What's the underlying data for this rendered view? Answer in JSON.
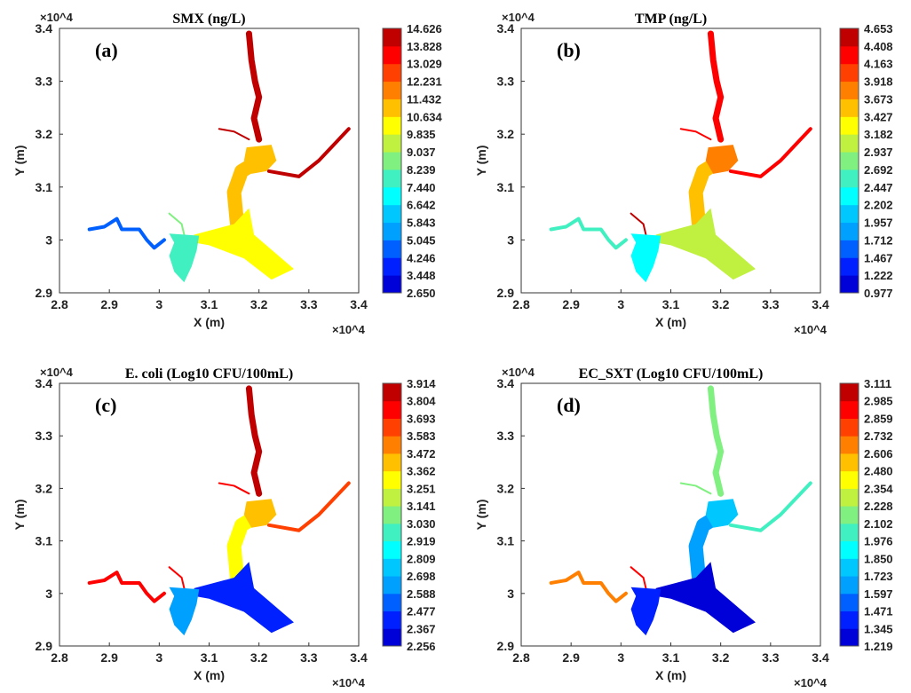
{
  "chart_data": [
    {
      "panel_label": "(a)",
      "title": "SMX (ng/L)",
      "type": "heatmap",
      "xlabel": "X (m)",
      "ylabel": "Y (m)",
      "x_scale_label": "×10^4",
      "y_scale_label": "×10^4",
      "xlim": [
        2.8,
        3.4
      ],
      "ylim": [
        2.9,
        3.4
      ],
      "xticks": [
        "2.8",
        "2.9",
        "3",
        "3.1",
        "3.2",
        "3.3",
        "3.4"
      ],
      "yticks": [
        "2.9",
        "3",
        "3.1",
        "3.2",
        "3.3",
        "3.4"
      ],
      "colorbar_ticks": [
        "2.650",
        "3.448",
        "4.246",
        "5.045",
        "5.843",
        "6.642",
        "7.440",
        "8.239",
        "9.037",
        "9.835",
        "10.634",
        "11.432",
        "12.231",
        "13.029",
        "13.828",
        "14.626"
      ],
      "regions": {
        "north_river": 14.2,
        "nw_tributary": 14.0,
        "ne_tributary": 13.9,
        "junction": 11.0,
        "main_channel": 10.8,
        "south_estuary": 10.1,
        "west_river": 4.6,
        "west_branch": 8.5,
        "west_estuary": 7.6
      }
    },
    {
      "panel_label": "(b)",
      "title": "TMP (ng/L)",
      "type": "heatmap",
      "xlabel": "X (m)",
      "ylabel": "Y (m)",
      "x_scale_label": "×10^4",
      "y_scale_label": "×10^4",
      "xlim": [
        2.8,
        3.4
      ],
      "ylim": [
        2.9,
        3.4
      ],
      "xticks": [
        "2.8",
        "2.9",
        "3",
        "3.1",
        "3.2",
        "3.3",
        "3.4"
      ],
      "yticks": [
        "2.9",
        "3",
        "3.1",
        "3.2",
        "3.3",
        "3.4"
      ],
      "colorbar_ticks": [
        "0.977",
        "1.222",
        "1.467",
        "1.712",
        "1.957",
        "2.202",
        "2.447",
        "2.692",
        "2.937",
        "3.182",
        "3.427",
        "3.673",
        "3.918",
        "4.163",
        "4.408",
        "4.653"
      ],
      "regions": {
        "north_river": 4.25,
        "nw_tributary": 4.3,
        "ne_tributary": 4.2,
        "junction": 3.8,
        "main_channel": 3.5,
        "south_estuary": 3.1,
        "west_river": 2.55,
        "west_branch": 4.5,
        "west_estuary": 2.3
      }
    },
    {
      "panel_label": "(c)",
      "title": "E. coli (Log10 CFU/100mL)",
      "type": "heatmap",
      "xlabel": "X (m)",
      "ylabel": "Y (m)",
      "x_scale_label": "×10^4",
      "y_scale_label": "×10^4",
      "xlim": [
        2.8,
        3.4
      ],
      "ylim": [
        2.9,
        3.4
      ],
      "xticks": [
        "2.8",
        "2.9",
        "3",
        "3.1",
        "3.2",
        "3.3",
        "3.4"
      ],
      "yticks": [
        "2.9",
        "3",
        "3.1",
        "3.2",
        "3.3",
        "3.4"
      ],
      "colorbar_ticks": [
        "2.256",
        "2.367",
        "2.477",
        "2.588",
        "2.698",
        "2.809",
        "2.919",
        "3.030",
        "3.141",
        "3.251",
        "3.362",
        "3.472",
        "3.583",
        "3.693",
        "3.804",
        "3.914"
      ],
      "regions": {
        "north_river": 3.86,
        "nw_tributary": 3.75,
        "ne_tributary": 3.62,
        "junction": 3.45,
        "main_channel": 3.3,
        "south_estuary": 2.42,
        "west_river": 3.72,
        "west_branch": 3.75,
        "west_estuary": 2.6
      }
    },
    {
      "panel_label": "(d)",
      "title": "EC_SXT (Log10 CFU/100mL)",
      "type": "heatmap",
      "xlabel": "X (m)",
      "ylabel": "Y (m)",
      "x_scale_label": "×10^4",
      "y_scale_label": "×10^4",
      "xlim": [
        2.8,
        3.4
      ],
      "ylim": [
        2.9,
        3.4
      ],
      "xticks": [
        "2.8",
        "2.9",
        "3",
        "3.1",
        "3.2",
        "3.3",
        "3.4"
      ],
      "yticks": [
        "2.9",
        "3",
        "3.1",
        "3.2",
        "3.3",
        "3.4"
      ],
      "colorbar_ticks": [
        "1.219",
        "1.345",
        "1.471",
        "1.597",
        "1.723",
        "1.850",
        "1.976",
        "2.102",
        "2.228",
        "2.354",
        "2.480",
        "2.606",
        "2.732",
        "2.859",
        "2.985",
        "3.111"
      ],
      "regions": {
        "north_river": 2.2,
        "nw_tributary": 2.15,
        "ne_tributary": 2.05,
        "junction": 1.75,
        "main_channel": 1.65,
        "south_estuary": 1.3,
        "west_river": 2.62,
        "west_branch": 2.95,
        "west_estuary": 1.4
      }
    }
  ],
  "colormap": [
    "#00008f",
    "#0000d8",
    "#0020ff",
    "#0060ff",
    "#00a0ff",
    "#00c8ff",
    "#00ffff",
    "#40f0c0",
    "#80f080",
    "#c0f040",
    "#ffff00",
    "#ffc000",
    "#ff8000",
    "#ff4000",
    "#ff0000",
    "#c00000"
  ]
}
